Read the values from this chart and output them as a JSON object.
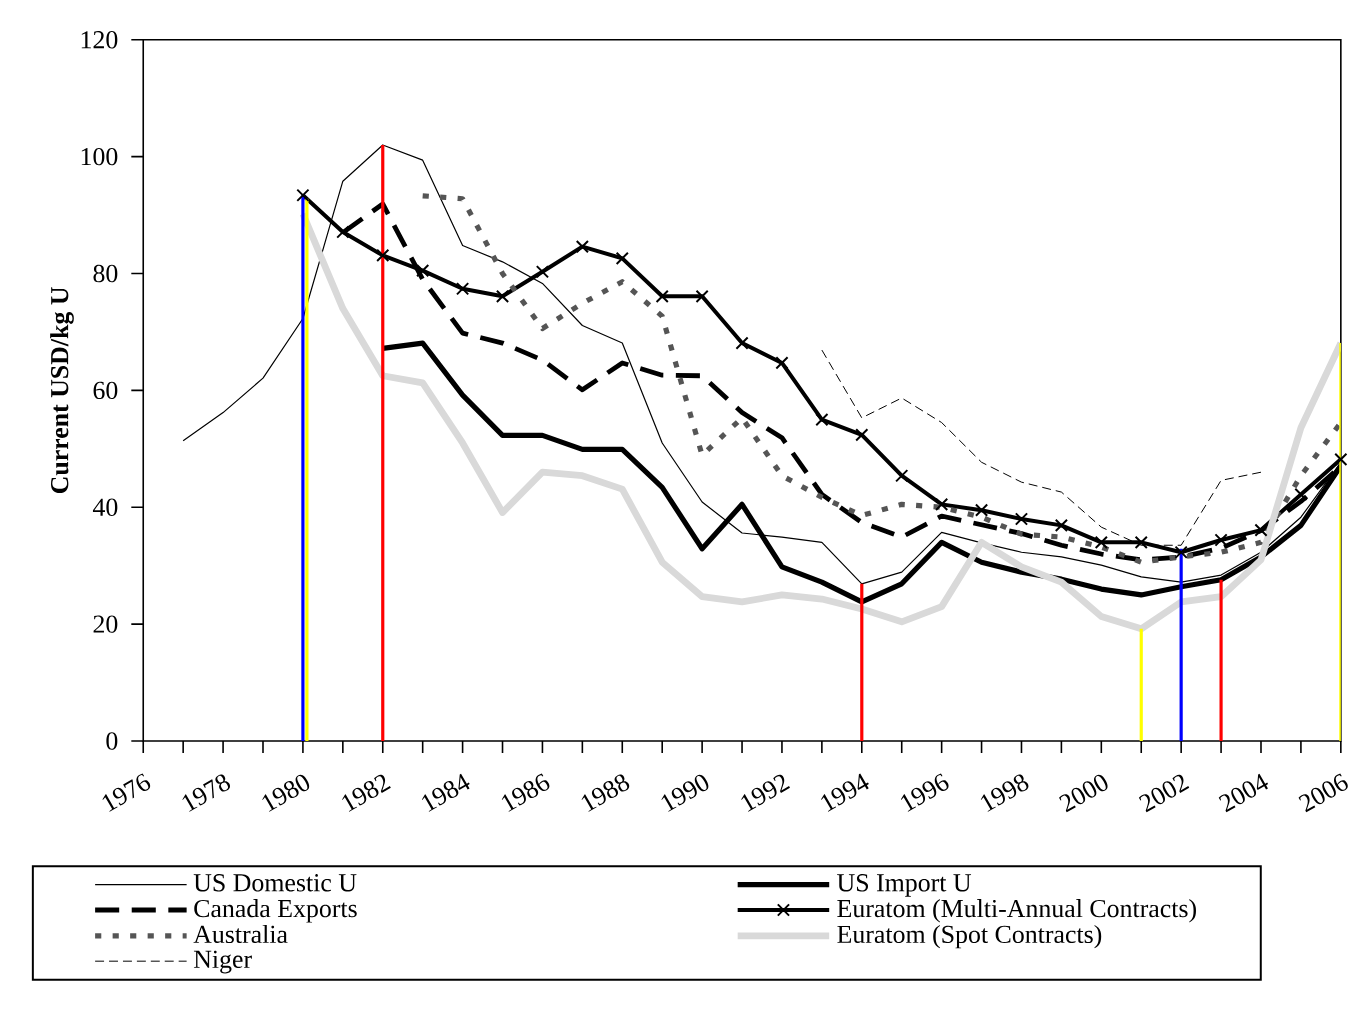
{
  "chart_data": {
    "type": "line",
    "ylabel": "Current USD/kg U",
    "x": [
      1977,
      1978,
      1979,
      1980,
      1981,
      1982,
      1983,
      1984,
      1985,
      1986,
      1987,
      1988,
      1989,
      1990,
      1991,
      1992,
      1993,
      1994,
      1995,
      1996,
      1997,
      1998,
      1999,
      2000,
      2001,
      2002,
      2003,
      2004,
      2005,
      2006
    ],
    "xlim": [
      1976,
      2006
    ],
    "ylim": [
      0,
      120
    ],
    "yticks": [
      0,
      20,
      40,
      60,
      80,
      100,
      120
    ],
    "xticks": [
      1976,
      {
        "value": 1977,
        "label": null
      },
      1978,
      {
        "value": 1979,
        "label": null
      },
      1980,
      {
        "value": 1981,
        "label": null
      },
      1982,
      {
        "value": 1983,
        "label": null
      },
      1984,
      {
        "value": 1985,
        "label": null
      },
      1986,
      {
        "value": 1987,
        "label": null
      },
      1988,
      {
        "value": 1989,
        "label": null
      },
      1990,
      {
        "value": 1991,
        "label": null
      },
      1992,
      {
        "value": 1993,
        "label": null
      },
      1994,
      {
        "value": 1995,
        "label": null
      },
      1996,
      {
        "value": 1997,
        "label": null
      },
      1998,
      {
        "value": 1999,
        "label": null
      },
      2000,
      {
        "value": 2001,
        "label": null
      },
      2002,
      {
        "value": 2003,
        "label": null
      },
      2004,
      {
        "value": 2005,
        "label": null
      },
      2006
    ],
    "legend": "bottom",
    "grid": false,
    "series": [
      {
        "name": "US Domestic U",
        "color": "#000000",
        "line_style": "solid",
        "values": [
          51.4,
          56.2,
          62.1,
          72.3,
          95.8,
          102,
          99.4,
          84.8,
          82,
          78.3,
          71.1,
          68.1,
          51,
          40.9,
          35.6,
          34.9,
          34,
          26.9,
          28.9,
          35.7,
          33.9,
          32.3,
          31.5,
          30.1,
          28.1,
          27.2,
          28.4,
          32.3,
          38.3,
          47.7
        ]
      },
      {
        "name": "US Import U",
        "color": "#000000",
        "line_style": "solid",
        "values": [
          null,
          null,
          null,
          null,
          null,
          67.2,
          68.1,
          59.2,
          52.3,
          52.3,
          49.9,
          49.9,
          43.4,
          32.9,
          40.5,
          29.8,
          27.2,
          23.8,
          26.9,
          34,
          30.6,
          28.9,
          27.7,
          26,
          25,
          26.4,
          27.6,
          31.5,
          36.9,
          47.1
        ]
      },
      {
        "name": "Canada Exports",
        "color": "#000000",
        "line_style": "dashed",
        "values": [
          null,
          null,
          null,
          null,
          87,
          91.9,
          79,
          69.8,
          68.1,
          65.2,
          60.1,
          64.7,
          62.6,
          62.5,
          56.2,
          51.9,
          42.2,
          37.4,
          34.9,
          38.5,
          37,
          35.5,
          33.5,
          32,
          31,
          31.5,
          33,
          36,
          41,
          47
        ]
      },
      {
        "name": "Euratom (Multi-Annual Contracts)",
        "color": "#000000",
        "line_style": "solid",
        "marker": "cross",
        "values": [
          null,
          null,
          null,
          93.4,
          87.1,
          83.1,
          80.5,
          77.4,
          76.1,
          80.3,
          84.6,
          82.6,
          76.1,
          76.1,
          68.1,
          64.7,
          55,
          52.4,
          45.4,
          40.5,
          39.5,
          38,
          36.9,
          34,
          34,
          32.3,
          34.4,
          36.1,
          42.2,
          48.2
        ]
      },
      {
        "name": "Australia",
        "color": "#555555",
        "line_style": "dotted",
        "values": [
          null,
          null,
          null,
          null,
          null,
          null,
          93.3,
          92.8,
          80,
          70.6,
          74.9,
          78.6,
          72.7,
          48.9,
          55.3,
          45.4,
          41.7,
          38.6,
          40.5,
          40,
          38.3,
          35.4,
          34.9,
          33.2,
          30.6,
          31.5,
          32.3,
          34,
          45.4,
          54.5
        ]
      },
      {
        "name": "Euratom (Spot Contracts)",
        "color": "#d9d9d9",
        "line_style": "solid",
        "values": [
          null,
          null,
          null,
          90.2,
          74,
          62.5,
          61.3,
          51,
          39.1,
          46,
          45.4,
          43.1,
          30.6,
          24.7,
          23.8,
          25,
          24.3,
          22.6,
          20.4,
          23,
          34,
          29.8,
          27.2,
          21.3,
          19.2,
          23.8,
          24.7,
          31,
          53.6,
          68.1
        ]
      },
      {
        "name": "Niger",
        "color": "#000000",
        "line_style": "dashed",
        "values": [
          null,
          null,
          null,
          null,
          null,
          null,
          null,
          null,
          null,
          null,
          null,
          null,
          null,
          null,
          null,
          null,
          66.9,
          55.3,
          58.7,
          54.5,
          47.7,
          44.3,
          42.6,
          36.6,
          33.5,
          33.5,
          44.6,
          46,
          null,
          null
        ]
      },
      {
        "type": "line",
        "color": "#0000ff",
        "x": [
          1980,
          1980
        ],
        "values": [
          0,
          93.4
        ]
      },
      {
        "type": "line",
        "color": "#ffff00",
        "x": [
          1980.1,
          1980.1
        ],
        "values": [
          0,
          92.8
        ]
      },
      {
        "type": "line",
        "color": "#ff0000",
        "x": [
          1982,
          1982
        ],
        "values": [
          0,
          102
        ]
      },
      {
        "type": "line",
        "color": "#ff0000",
        "x": [
          1994,
          1994
        ],
        "values": [
          0,
          26.9
        ]
      },
      {
        "type": "line",
        "color": "#ffff00",
        "x": [
          2001,
          2001
        ],
        "values": [
          0,
          19.2
        ]
      },
      {
        "type": "line",
        "color": "#0000ff",
        "x": [
          2002,
          2002
        ],
        "values": [
          0,
          32.9
        ]
      },
      {
        "type": "line",
        "color": "#ff0000",
        "x": [
          2003,
          2003
        ],
        "values": [
          0,
          27.6
        ]
      },
      {
        "type": "line",
        "color": "#ffff00",
        "x": [
          2006,
          2006
        ],
        "values": [
          0,
          68.1
        ]
      }
    ]
  }
}
